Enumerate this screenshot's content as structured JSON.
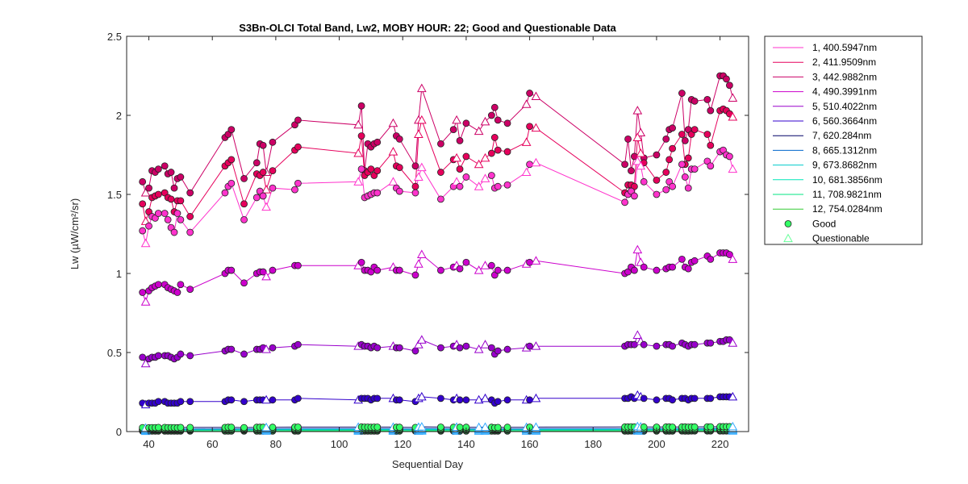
{
  "chart_data": {
    "type": "line",
    "title": "S3Bn-OLCI Total Band,  Lw2, MOBY HOUR: 22;  Good and Questionable Data",
    "xlabel": "Sequential Day",
    "ylabel": "Lw (µW/cm²/sr)",
    "xlim": [
      33,
      229
    ],
    "ylim": [
      0,
      2.5
    ],
    "xticks": [
      40,
      60,
      80,
      100,
      120,
      140,
      160,
      180,
      200,
      220
    ],
    "xtick_labels": [
      "40",
      "60",
      "80",
      "100",
      "120",
      "140",
      "160",
      "180",
      "200",
      "220"
    ],
    "yticks": [
      0,
      0.5,
      1,
      1.5,
      2,
      2.5
    ],
    "ytick_labels": [
      "0",
      "0.5",
      "1",
      "1.5",
      "2",
      "2.5"
    ],
    "legend_position": "outside-right",
    "x": [
      38,
      39,
      40,
      41,
      42,
      43,
      45,
      46,
      47,
      48,
      49,
      50,
      53,
      64,
      65,
      66,
      70,
      74,
      75,
      76,
      77,
      79,
      86,
      87,
      106,
      107,
      108,
      109,
      110,
      111,
      112,
      117,
      118,
      119,
      124,
      125,
      126,
      132,
      136,
      137,
      138,
      140,
      144,
      146,
      148,
      149,
      150,
      153,
      159,
      160,
      162,
      190,
      191,
      192,
      193,
      194,
      195,
      196,
      200,
      203,
      204,
      205,
      208,
      209,
      210,
      211,
      212,
      216,
      217,
      220,
      221,
      222,
      223,
      224
    ],
    "quality": [
      "G",
      "Q",
      "G",
      "G",
      "G",
      "G",
      "G",
      "G",
      "G",
      "G",
      "G",
      "G",
      "G",
      "G",
      "G",
      "G",
      "G",
      "G",
      "G",
      "G",
      "Q",
      "G",
      "G",
      "G",
      "Q",
      "G",
      "G",
      "G",
      "G",
      "G",
      "G",
      "Q",
      "G",
      "G",
      "G",
      "Q",
      "Q",
      "G",
      "G",
      "Q",
      "G",
      "G",
      "Q",
      "Q",
      "G",
      "G",
      "G",
      "G",
      "Q",
      "G",
      "Q",
      "G",
      "G",
      "G",
      "G",
      "Q",
      "Q",
      "G",
      "G",
      "G",
      "G",
      "G",
      "G",
      "G",
      "G",
      "G",
      "G",
      "G",
      "G",
      "G",
      "G",
      "G",
      "G",
      "Q"
    ],
    "series": [
      {
        "name": "1, 400.5947nm",
        "color": "#ff33cc",
        "values": [
          1.27,
          1.19,
          1.3,
          1.36,
          1.35,
          1.38,
          1.38,
          1.34,
          1.29,
          1.26,
          1.38,
          1.34,
          1.26,
          1.51,
          1.55,
          1.57,
          1.34,
          1.48,
          1.52,
          1.49,
          1.42,
          1.54,
          1.53,
          1.57,
          1.58,
          1.66,
          1.48,
          1.49,
          1.5,
          1.51,
          1.51,
          1.58,
          1.54,
          1.52,
          1.51,
          1.61,
          1.67,
          1.47,
          1.55,
          1.58,
          1.55,
          1.61,
          1.55,
          1.6,
          1.62,
          1.54,
          1.55,
          1.56,
          1.64,
          1.69,
          1.7,
          1.45,
          1.5,
          1.52,
          1.49,
          1.71,
          1.68,
          1.58,
          1.5,
          1.53,
          1.58,
          1.55,
          1.69,
          1.61,
          1.54,
          1.66,
          1.66,
          1.71,
          1.68,
          1.77,
          1.78,
          1.75,
          1.74,
          1.66
        ]
      },
      {
        "name": "2, 411.9509nm",
        "color": "#e6005c",
        "values": [
          1.44,
          1.33,
          1.39,
          1.48,
          1.49,
          1.5,
          1.51,
          1.48,
          1.47,
          1.39,
          1.46,
          1.46,
          1.36,
          1.68,
          1.7,
          1.72,
          1.44,
          1.63,
          1.62,
          1.64,
          1.53,
          1.65,
          1.78,
          1.8,
          1.76,
          1.87,
          1.62,
          1.64,
          1.66,
          1.62,
          1.65,
          1.77,
          1.68,
          1.67,
          1.55,
          1.88,
          1.97,
          1.64,
          1.72,
          1.73,
          1.66,
          1.74,
          1.69,
          1.73,
          1.76,
          1.86,
          1.78,
          1.77,
          1.83,
          1.93,
          1.92,
          1.51,
          1.56,
          1.56,
          1.55,
          1.86,
          1.76,
          1.7,
          1.59,
          1.64,
          1.72,
          1.79,
          1.88,
          1.69,
          1.73,
          1.88,
          1.91,
          1.88,
          1.81,
          2.03,
          2.04,
          2.03,
          2.01,
          1.99
        ]
      },
      {
        "name": "3, 442.9882nm",
        "color": "#cc0066",
        "values": [
          1.58,
          1.51,
          1.54,
          1.65,
          1.64,
          1.66,
          1.68,
          1.63,
          1.64,
          1.54,
          1.6,
          1.61,
          1.51,
          1.86,
          1.88,
          1.91,
          1.6,
          1.7,
          1.82,
          1.81,
          1.64,
          1.83,
          1.94,
          1.97,
          1.94,
          2.06,
          1.65,
          1.82,
          1.8,
          1.82,
          1.83,
          1.95,
          1.87,
          1.85,
          1.68,
          1.97,
          2.17,
          1.82,
          1.91,
          1.97,
          1.84,
          1.95,
          1.9,
          1.96,
          2.0,
          2.05,
          1.97,
          1.95,
          2.07,
          2.14,
          2.12,
          1.69,
          1.85,
          1.65,
          1.74,
          2.03,
          1.89,
          1.73,
          1.75,
          1.85,
          1.91,
          1.92,
          2.14,
          1.84,
          1.91,
          2.1,
          2.09,
          2.1,
          2.03,
          2.25,
          2.25,
          2.23,
          2.19,
          2.11
        ]
      },
      {
        "name": "4, 490.3991nm",
        "color": "#cc00cc",
        "values": [
          0.88,
          0.82,
          0.89,
          0.91,
          0.92,
          0.93,
          0.93,
          0.91,
          0.9,
          0.89,
          0.88,
          0.93,
          0.9,
          1.0,
          1.02,
          1.02,
          0.94,
          1.0,
          1.01,
          1.01,
          0.98,
          1.02,
          1.05,
          1.05,
          1.05,
          1.07,
          1.02,
          1.02,
          1.01,
          1.04,
          1.02,
          1.04,
          1.02,
          1.02,
          0.99,
          1.06,
          1.12,
          1.02,
          1.04,
          1.05,
          1.03,
          1.07,
          1.02,
          1.05,
          1.05,
          0.99,
          1.02,
          1.02,
          1.06,
          1.07,
          1.08,
          1.0,
          1.01,
          1.04,
          1.02,
          1.15,
          1.07,
          1.04,
          1.02,
          1.03,
          1.04,
          1.04,
          1.09,
          1.04,
          1.03,
          1.07,
          1.08,
          1.11,
          1.09,
          1.13,
          1.13,
          1.13,
          1.12,
          1.09
        ]
      },
      {
        "name": "5, 510.4022nm",
        "color": "#9900cc",
        "values": [
          0.47,
          0.43,
          0.46,
          0.47,
          0.47,
          0.48,
          0.48,
          0.48,
          0.47,
          0.46,
          0.47,
          0.49,
          0.48,
          0.51,
          0.52,
          0.52,
          0.49,
          0.52,
          0.52,
          0.53,
          0.52,
          0.53,
          0.54,
          0.55,
          0.54,
          0.55,
          0.54,
          0.54,
          0.53,
          0.54,
          0.53,
          0.54,
          0.53,
          0.53,
          0.51,
          0.55,
          0.58,
          0.53,
          0.54,
          0.55,
          0.53,
          0.54,
          0.52,
          0.55,
          0.53,
          0.49,
          0.51,
          0.52,
          0.53,
          0.54,
          0.54,
          0.54,
          0.55,
          0.55,
          0.55,
          0.61,
          0.57,
          0.55,
          0.54,
          0.55,
          0.55,
          0.54,
          0.56,
          0.55,
          0.54,
          0.55,
          0.55,
          0.56,
          0.56,
          0.57,
          0.57,
          0.58,
          0.58,
          0.56
        ]
      },
      {
        "name": "6, 560.3664nm",
        "color": "#3300cc",
        "values": [
          0.18,
          0.17,
          0.18,
          0.18,
          0.18,
          0.19,
          0.19,
          0.18,
          0.18,
          0.18,
          0.18,
          0.19,
          0.19,
          0.19,
          0.2,
          0.2,
          0.19,
          0.2,
          0.2,
          0.2,
          0.2,
          0.2,
          0.2,
          0.21,
          0.2,
          0.21,
          0.21,
          0.21,
          0.2,
          0.21,
          0.21,
          0.21,
          0.2,
          0.2,
          0.19,
          0.21,
          0.22,
          0.21,
          0.2,
          0.21,
          0.2,
          0.2,
          0.2,
          0.21,
          0.2,
          0.18,
          0.19,
          0.2,
          0.2,
          0.2,
          0.21,
          0.21,
          0.21,
          0.22,
          0.21,
          0.23,
          0.22,
          0.21,
          0.2,
          0.21,
          0.21,
          0.2,
          0.21,
          0.21,
          0.2,
          0.21,
          0.21,
          0.21,
          0.21,
          0.22,
          0.22,
          0.22,
          0.22,
          0.22
        ]
      },
      {
        "name": "7,  620.284nm",
        "color": "#000066",
        "values": [
          0.025,
          0.022,
          0.024,
          0.025,
          0.025,
          0.026,
          0.026,
          0.025,
          0.025,
          0.025,
          0.024,
          0.026,
          0.026,
          0.026,
          0.027,
          0.027,
          0.025,
          0.027,
          0.027,
          0.027,
          0.026,
          0.027,
          0.028,
          0.028,
          0.028,
          0.029,
          0.028,
          0.028,
          0.027,
          0.028,
          0.028,
          0.028,
          0.027,
          0.027,
          0.026,
          0.028,
          0.03,
          0.028,
          0.027,
          0.028,
          0.027,
          0.027,
          0.027,
          0.028,
          0.027,
          0.025,
          0.026,
          0.027,
          0.027,
          0.028,
          0.028,
          0.029,
          0.029,
          0.03,
          0.029,
          0.032,
          0.03,
          0.029,
          0.028,
          0.029,
          0.029,
          0.028,
          0.029,
          0.029,
          0.028,
          0.029,
          0.029,
          0.03,
          0.03,
          0.031,
          0.031,
          0.031,
          0.031,
          0.031
        ]
      },
      {
        "name": "8, 665.1312nm",
        "color": "#0066cc",
        "values": [
          0.016,
          0.014,
          0.015,
          0.016,
          0.016,
          0.016,
          0.016,
          0.016,
          0.016,
          0.016,
          0.015,
          0.016,
          0.016,
          0.017,
          0.017,
          0.017,
          0.016,
          0.017,
          0.017,
          0.017,
          0.016,
          0.017,
          0.018,
          0.018,
          0.018,
          0.018,
          0.018,
          0.018,
          0.017,
          0.018,
          0.018,
          0.018,
          0.017,
          0.017,
          0.016,
          0.018,
          0.019,
          0.018,
          0.017,
          0.018,
          0.017,
          0.017,
          0.017,
          0.018,
          0.017,
          0.016,
          0.016,
          0.017,
          0.017,
          0.018,
          0.018,
          0.018,
          0.018,
          0.019,
          0.018,
          0.02,
          0.019,
          0.018,
          0.018,
          0.018,
          0.018,
          0.018,
          0.018,
          0.018,
          0.018,
          0.018,
          0.018,
          0.019,
          0.019,
          0.02,
          0.02,
          0.02,
          0.02,
          0.02
        ]
      },
      {
        "name": "9, 673.8682nm",
        "color": "#00cccc",
        "values": [
          0.014,
          0.012,
          0.013,
          0.014,
          0.014,
          0.014,
          0.014,
          0.014,
          0.014,
          0.014,
          0.013,
          0.014,
          0.014,
          0.015,
          0.015,
          0.015,
          0.014,
          0.015,
          0.015,
          0.015,
          0.014,
          0.015,
          0.016,
          0.016,
          0.016,
          0.016,
          0.016,
          0.016,
          0.015,
          0.016,
          0.016,
          0.016,
          0.015,
          0.015,
          0.014,
          0.016,
          0.017,
          0.016,
          0.015,
          0.016,
          0.015,
          0.015,
          0.015,
          0.016,
          0.015,
          0.014,
          0.014,
          0.015,
          0.015,
          0.016,
          0.016,
          0.016,
          0.016,
          0.017,
          0.016,
          0.018,
          0.017,
          0.016,
          0.016,
          0.016,
          0.016,
          0.016,
          0.016,
          0.016,
          0.016,
          0.016,
          0.016,
          0.017,
          0.017,
          0.018,
          0.018,
          0.018,
          0.018,
          0.018
        ]
      },
      {
        "name": "10, 681.3856nm",
        "color": "#00e6b8",
        "values": [
          0.011,
          0.01,
          0.011,
          0.011,
          0.011,
          0.011,
          0.011,
          0.011,
          0.011,
          0.011,
          0.011,
          0.011,
          0.011,
          0.012,
          0.012,
          0.012,
          0.011,
          0.012,
          0.012,
          0.012,
          0.011,
          0.012,
          0.012,
          0.012,
          0.012,
          0.013,
          0.012,
          0.012,
          0.012,
          0.012,
          0.012,
          0.012,
          0.012,
          0.012,
          0.011,
          0.012,
          0.013,
          0.012,
          0.012,
          0.012,
          0.012,
          0.012,
          0.012,
          0.012,
          0.012,
          0.011,
          0.011,
          0.012,
          0.012,
          0.012,
          0.012,
          0.013,
          0.013,
          0.013,
          0.013,
          0.014,
          0.013,
          0.013,
          0.012,
          0.013,
          0.013,
          0.012,
          0.013,
          0.013,
          0.012,
          0.013,
          0.013,
          0.013,
          0.013,
          0.014,
          0.014,
          0.014,
          0.014,
          0.014
        ]
      },
      {
        "name": "11, 708.9821nm",
        "color": "#00e680",
        "values": [
          0.006,
          0.005,
          0.006,
          0.006,
          0.006,
          0.006,
          0.006,
          0.006,
          0.006,
          0.006,
          0.006,
          0.006,
          0.006,
          0.006,
          0.006,
          0.006,
          0.006,
          0.006,
          0.006,
          0.006,
          0.006,
          0.006,
          0.007,
          0.007,
          0.007,
          0.007,
          0.007,
          0.007,
          0.006,
          0.007,
          0.007,
          0.007,
          0.006,
          0.006,
          0.006,
          0.007,
          0.007,
          0.007,
          0.006,
          0.007,
          0.006,
          0.006,
          0.006,
          0.007,
          0.006,
          0.006,
          0.006,
          0.006,
          0.006,
          0.007,
          0.007,
          0.007,
          0.007,
          0.007,
          0.007,
          0.008,
          0.007,
          0.007,
          0.007,
          0.007,
          0.007,
          0.007,
          0.007,
          0.007,
          0.007,
          0.007,
          0.007,
          0.007,
          0.007,
          0.008,
          0.008,
          0.008,
          0.008,
          0.008
        ]
      },
      {
        "name": "12, 754.0284nm",
        "color": "#33cc33",
        "values": [
          0.003,
          0.002,
          0.003,
          0.003,
          0.003,
          0.003,
          0.003,
          0.003,
          0.003,
          0.003,
          0.003,
          0.003,
          0.003,
          0.003,
          0.003,
          0.003,
          0.003,
          0.003,
          0.003,
          0.003,
          0.003,
          0.003,
          0.003,
          0.003,
          0.003,
          0.003,
          0.003,
          0.003,
          0.003,
          0.003,
          0.003,
          0.003,
          0.003,
          0.003,
          0.003,
          0.003,
          0.004,
          0.003,
          0.003,
          0.003,
          0.003,
          0.003,
          0.003,
          0.003,
          0.003,
          0.003,
          0.003,
          0.003,
          0.003,
          0.003,
          0.003,
          0.003,
          0.003,
          0.004,
          0.003,
          0.004,
          0.004,
          0.003,
          0.003,
          0.003,
          0.003,
          0.003,
          0.004,
          0.003,
          0.003,
          0.004,
          0.004,
          0.004,
          0.004,
          0.004,
          0.004,
          0.004,
          0.004,
          0.004
        ]
      }
    ],
    "markers": [
      {
        "name": "Good",
        "shape": "circle",
        "color": "#33ff66"
      },
      {
        "name": "Questionable",
        "shape": "triangle",
        "color": "#66ff99"
      }
    ]
  }
}
